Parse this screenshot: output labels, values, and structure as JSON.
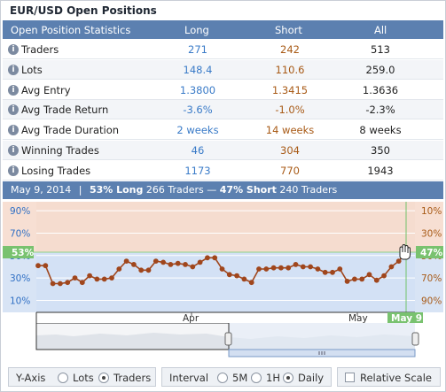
{
  "panel": {
    "title": "EUR/USD Open Positions"
  },
  "table": {
    "headers": {
      "stat": "Open Position Statistics",
      "long": "Long",
      "short": "Short",
      "all": "All"
    },
    "rows": [
      {
        "label": "Traders",
        "long": "271",
        "short": "242",
        "all": "513"
      },
      {
        "label": "Lots",
        "long": "148.4",
        "short": "110.6",
        "all": "259.0"
      },
      {
        "label": "Avg Entry",
        "long": "1.3800",
        "short": "1.3415",
        "all": "1.3636"
      },
      {
        "label": "Avg Trade Return",
        "long": "-3.6%",
        "short": "-1.0%",
        "all": "-2.3%"
      },
      {
        "label": "Avg Trade Duration",
        "long": "2 weeks",
        "short": "14 weeks",
        "all": "8 weeks"
      },
      {
        "label": "Winning Trades",
        "long": "46",
        "short": "304",
        "all": "350"
      },
      {
        "label": "Losing Trades",
        "long": "1173",
        "short": "770",
        "all": "1943"
      }
    ],
    "info_glyph": "i"
  },
  "summary": {
    "date": "May 9, 2014",
    "sep": "|",
    "long_pct": "53% Long",
    "long_traders": "266 Traders",
    "dash": "—",
    "short_pct": "47% Short",
    "short_traders": "240 Traders"
  },
  "chart_data": {
    "type": "line",
    "x_labels": [
      "Apr",
      "May"
    ],
    "current_x_label": "May 9",
    "left_axis": {
      "ticks": [
        "90%",
        "70%",
        "50%",
        "30%",
        "10%"
      ],
      "values": [
        90,
        70,
        50,
        30,
        10
      ],
      "current_label": "53%",
      "current_value": 53
    },
    "right_axis": {
      "ticks": [
        "10%",
        "30%",
        "50%",
        "70%",
        "90%"
      ],
      "current_label": "47%",
      "current_value": 47
    },
    "series": [
      {
        "values": [
          41,
          41,
          25,
          25,
          26,
          30,
          26,
          32,
          29,
          29,
          30,
          38,
          45,
          42,
          37,
          37,
          45,
          44,
          42,
          43,
          42,
          40,
          44,
          48,
          48,
          38,
          33,
          32,
          29,
          26,
          38,
          38,
          39,
          39,
          39,
          42,
          40,
          40,
          38,
          35,
          35,
          38,
          27,
          29,
          29,
          33,
          28,
          32,
          40,
          45,
          53
        ]
      }
    ],
    "ylim": [
      0,
      100
    ],
    "colors": {
      "long_fill": "#d3e1f5",
      "short_fill": "#f5dccf",
      "line": "#a0461c",
      "highlight": "#72c26b",
      "axis_tag": "#79c26f"
    }
  },
  "controls": {
    "y_axis_label": "Y-Axis",
    "y_axis_options": [
      "Lots",
      "Traders"
    ],
    "y_axis_selected": "Traders",
    "interval_label": "Interval",
    "interval_options": [
      "5M",
      "1H",
      "Daily"
    ],
    "interval_selected": "Daily",
    "relative_scale_label": "Relative Scale",
    "relative_scale_checked": false
  }
}
